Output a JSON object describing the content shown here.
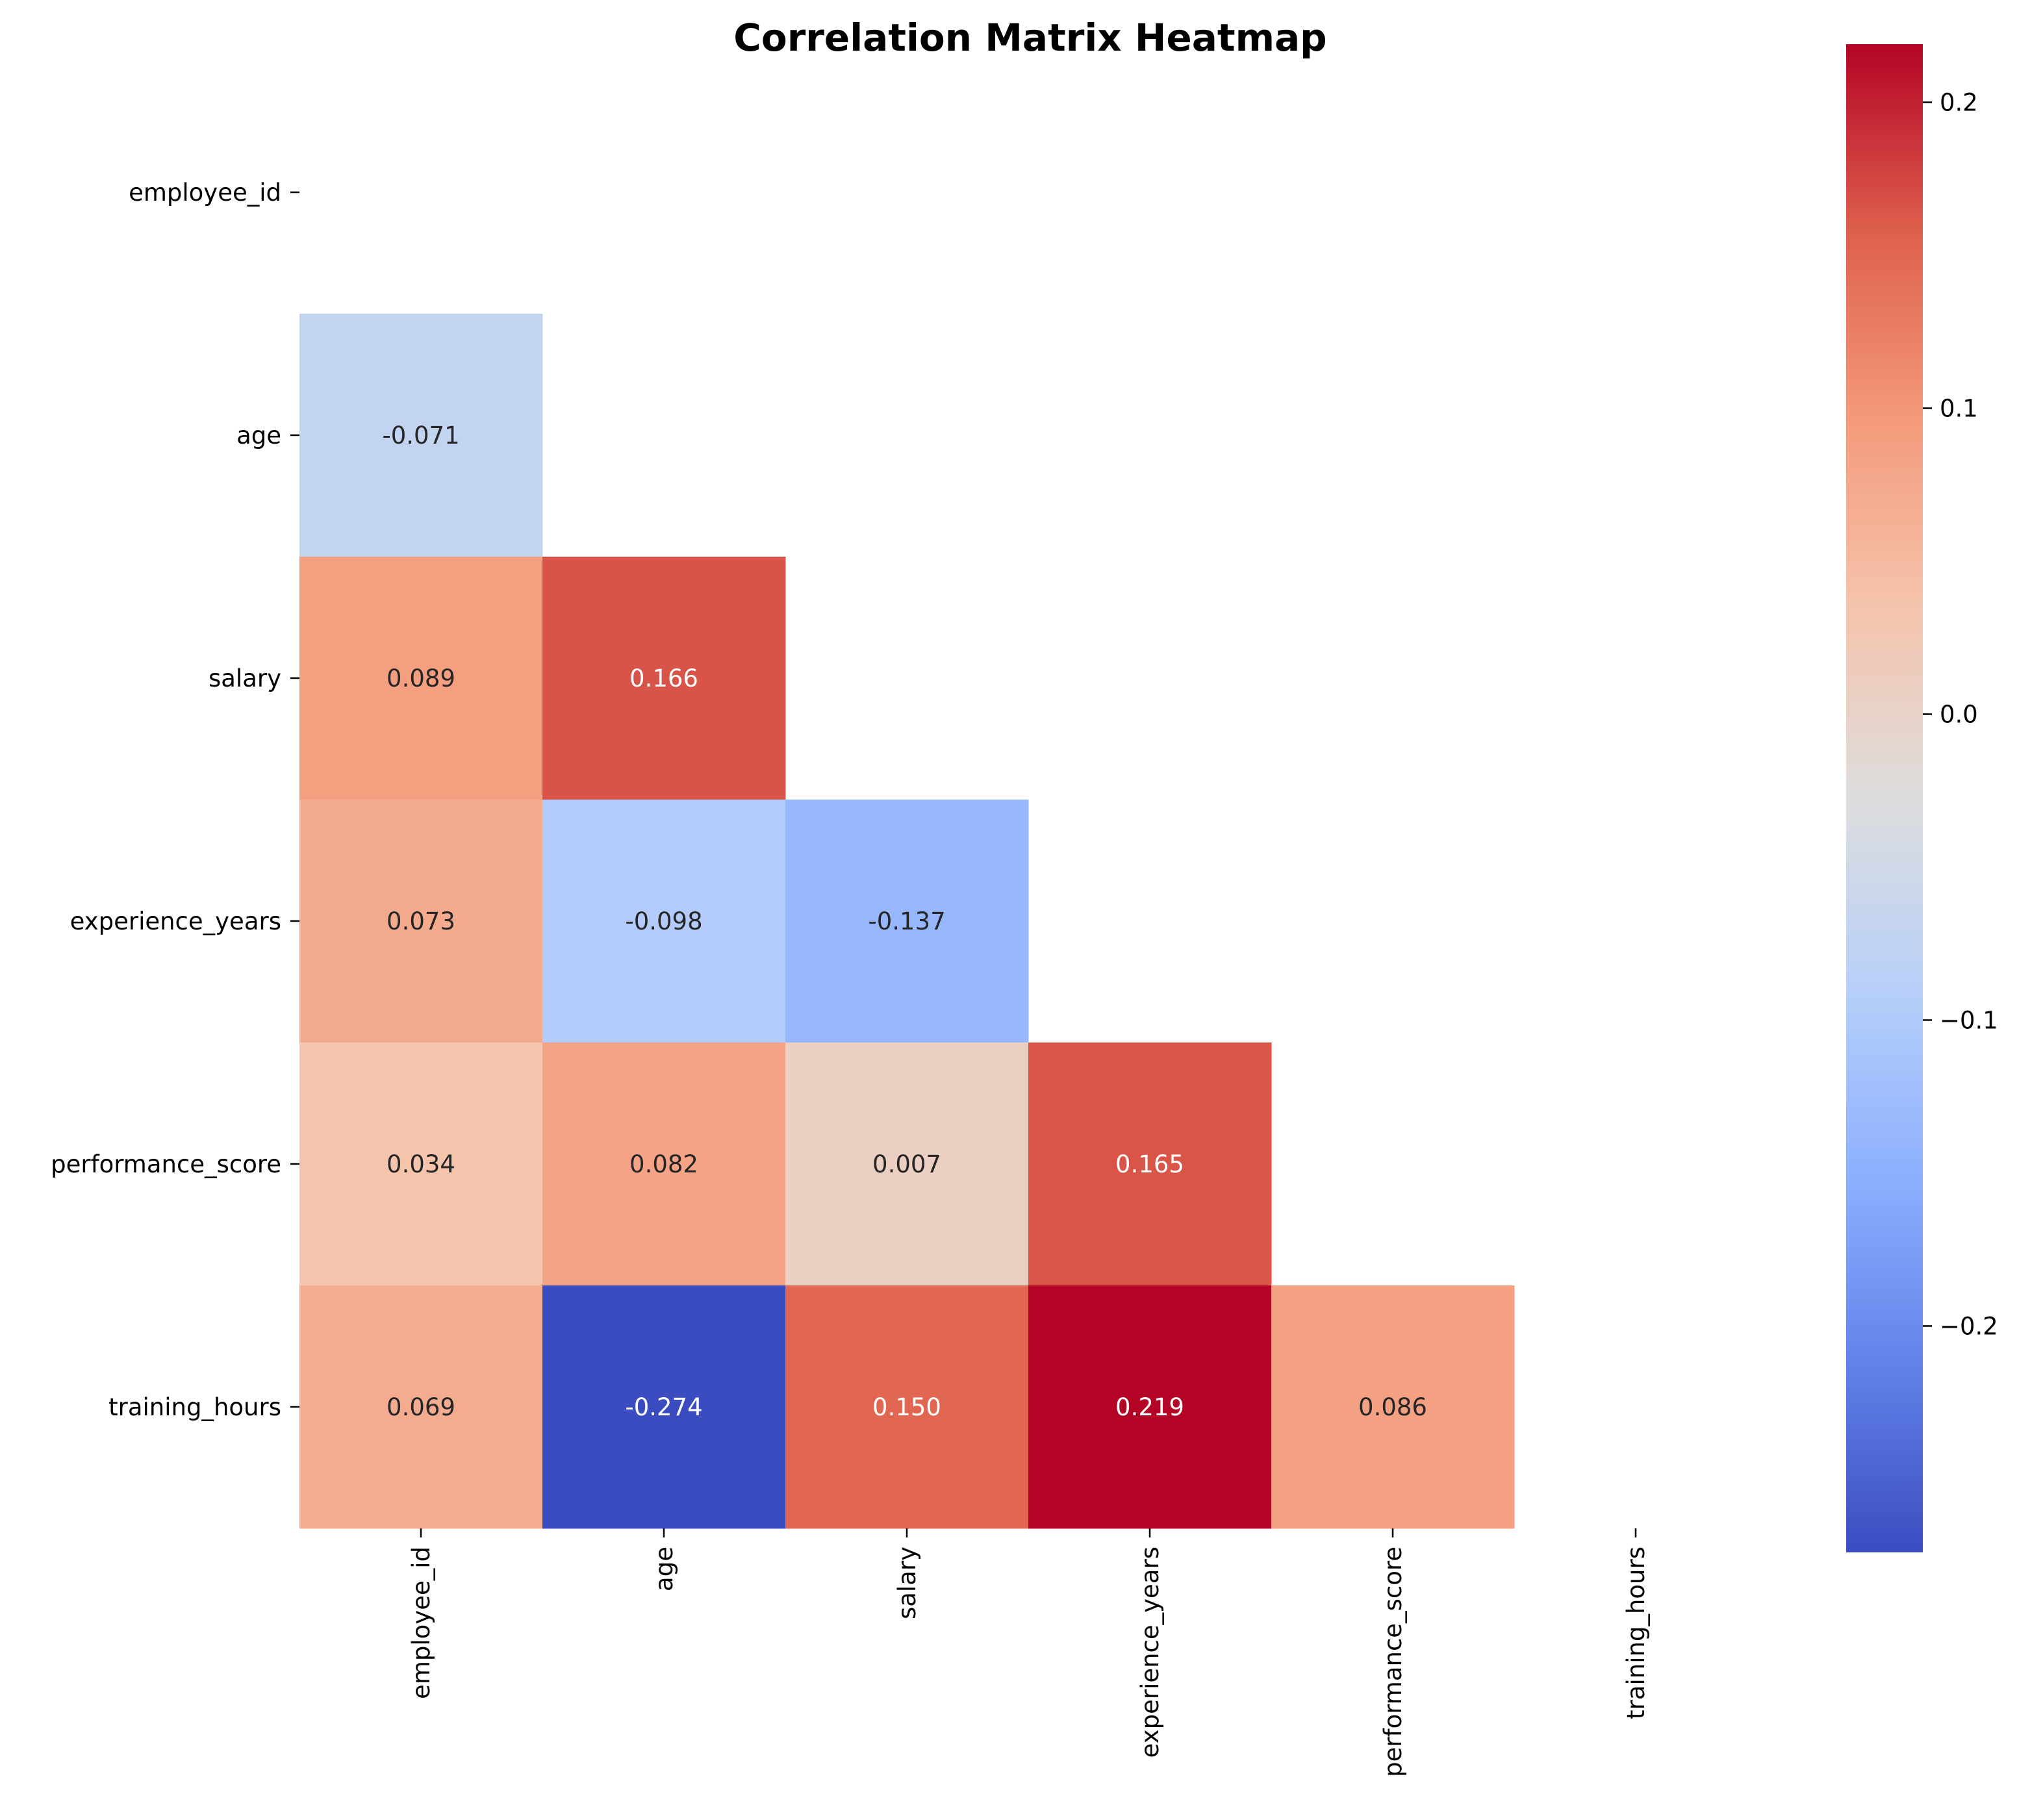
{
  "chart_data": {
    "type": "heatmap",
    "title": "Correlation Matrix Heatmap",
    "variables": [
      "employee_id",
      "age",
      "salary",
      "experience_years",
      "performance_score",
      "training_hours"
    ],
    "mask": "upper triangle including diagonal",
    "cells": [
      {
        "row": "age",
        "col": "employee_id",
        "value": -0.071,
        "label": "-0.071"
      },
      {
        "row": "salary",
        "col": "employee_id",
        "value": 0.089,
        "label": "0.089"
      },
      {
        "row": "salary",
        "col": "age",
        "value": 0.166,
        "label": "0.166"
      },
      {
        "row": "experience_years",
        "col": "employee_id",
        "value": 0.073,
        "label": "0.073"
      },
      {
        "row": "experience_years",
        "col": "age",
        "value": -0.098,
        "label": "-0.098"
      },
      {
        "row": "experience_years",
        "col": "salary",
        "value": -0.137,
        "label": "-0.137"
      },
      {
        "row": "performance_score",
        "col": "employee_id",
        "value": 0.034,
        "label": "0.034"
      },
      {
        "row": "performance_score",
        "col": "age",
        "value": 0.082,
        "label": "0.082"
      },
      {
        "row": "performance_score",
        "col": "salary",
        "value": 0.007,
        "label": "0.007"
      },
      {
        "row": "performance_score",
        "col": "experience_years",
        "value": 0.165,
        "label": "0.165"
      },
      {
        "row": "training_hours",
        "col": "employee_id",
        "value": 0.069,
        "label": "0.069"
      },
      {
        "row": "training_hours",
        "col": "age",
        "value": -0.274,
        "label": "-0.274"
      },
      {
        "row": "training_hours",
        "col": "salary",
        "value": 0.15,
        "label": "0.150"
      },
      {
        "row": "training_hours",
        "col": "experience_years",
        "value": 0.219,
        "label": "0.219"
      },
      {
        "row": "training_hours",
        "col": "performance_score",
        "value": 0.086,
        "label": "0.086"
      }
    ],
    "colormap": "coolwarm",
    "colorbar": {
      "vmin": -0.274,
      "vmax": 0.219,
      "ticks": [
        0.2,
        0.1,
        0.0,
        -0.1,
        -0.2
      ],
      "tick_labels": [
        "0.2",
        "0.1",
        "0.0",
        "−0.1",
        "−0.2"
      ]
    }
  }
}
